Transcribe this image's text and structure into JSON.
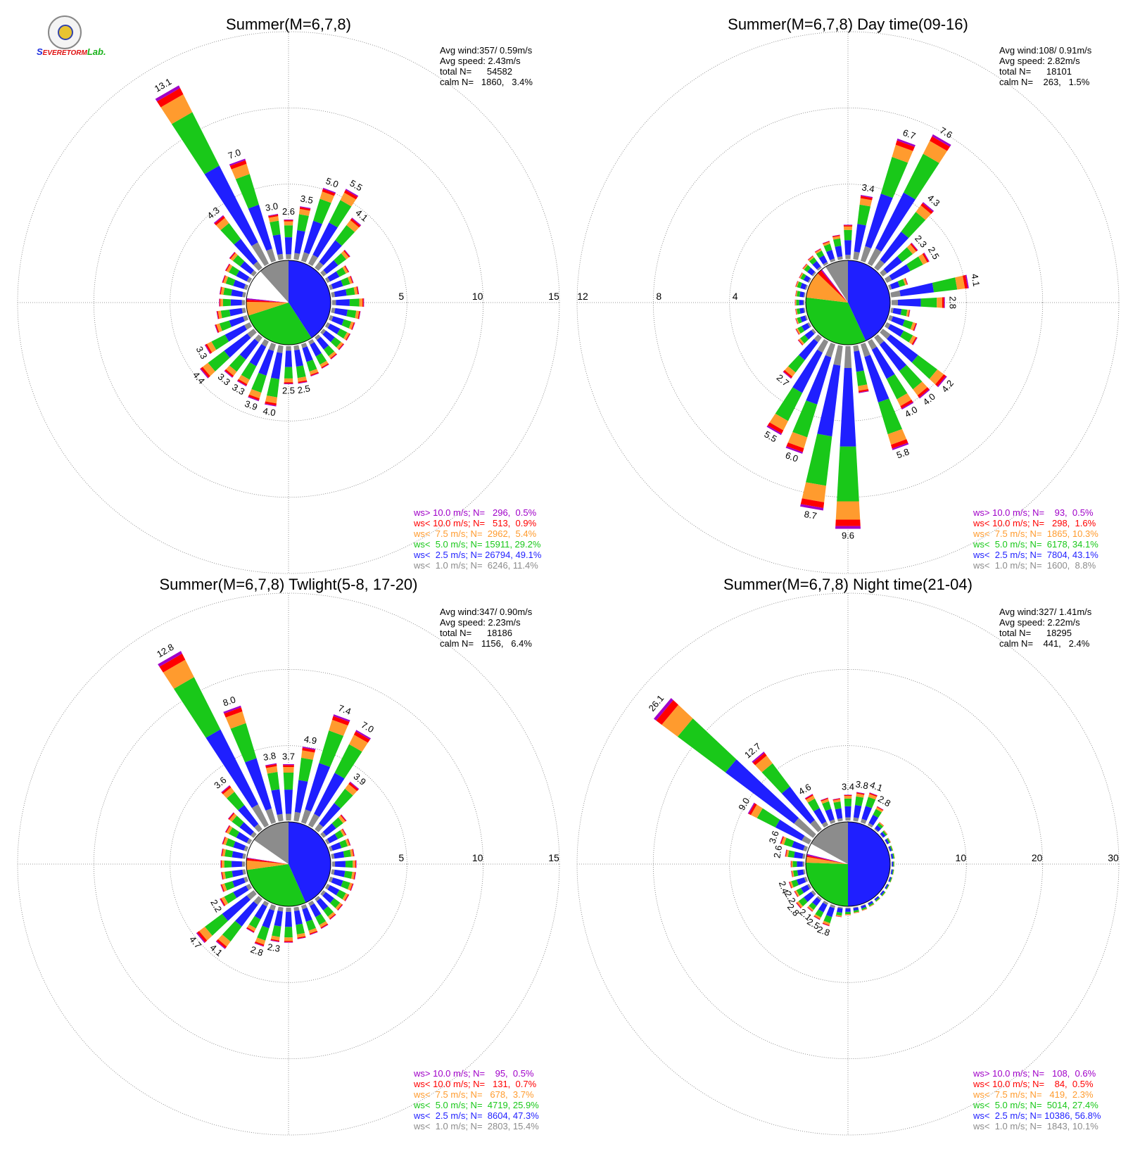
{
  "logo": {
    "s": "S",
    "severe": "EVERE",
    "storm": "TORM",
    "lab": "Lab."
  },
  "colors": {
    "ws_gt_10": "#a000c8",
    "ws_lt_10": "#ff0000",
    "ws_lt_7_5": "#ff9b2e",
    "ws_lt_5": "#19c819",
    "ws_lt_2_5": "#1f1fff",
    "ws_lt_1": "#8c8c8c",
    "grid": "#7a7a7a"
  },
  "chart_data": [
    {
      "type": "windrose",
      "title": "Summer(M=6,7,8)",
      "rlim": [
        0,
        15
      ],
      "ring_labels": [
        "5",
        "10",
        "15"
      ],
      "ring_values": [
        5,
        10,
        15
      ],
      "ring_label_side": "right",
      "stats": [
        "Avg wind:357/ 0.59m/s",
        "Avg speed: 2.43m/s",
        "total N=      54582",
        "calm N=   1860,   3.4%"
      ],
      "legend": [
        {
          "text": "ws> 10.0 m/s; N=   296,  0.5%",
          "color": "#a000c8"
        },
        {
          "text": "ws< 10.0 m/s; N=   513,  0.9%",
          "color": "#ff0000"
        },
        {
          "text": "ws<  7.5 m/s; N=  2962,  5.4%",
          "color": "#ff9b2e"
        },
        {
          "text": "ws<  5.0 m/s; N= 15911, 29.2%",
          "color": "#19c819"
        },
        {
          "text": "ws<  2.5 m/s; N= 26794, 49.1%",
          "color": "#1f1fff"
        },
        {
          "text": "ws<  1.0 m/s; N=  6246, 11.4%",
          "color": "#8c8c8c"
        }
      ],
      "pie": [
        {
          "from": 0,
          "to": 147,
          "color": "#1f1fff"
        },
        {
          "from": 147,
          "to": 252,
          "color": "#19c819"
        },
        {
          "from": 252,
          "to": 271,
          "color": "#ff9b2e"
        },
        {
          "from": 271,
          "to": 274,
          "color": "#ff0000"
        },
        {
          "from": 274,
          "to": 276,
          "color": "#a000c8"
        },
        {
          "from": 276,
          "to": 318,
          "color": "#ffffff"
        },
        {
          "from": 318,
          "to": 360,
          "color": "#8c8c8c"
        }
      ],
      "directions": [
        0,
        10,
        20,
        30,
        40,
        50,
        60,
        70,
        80,
        90,
        100,
        110,
        120,
        130,
        140,
        150,
        160,
        170,
        180,
        190,
        200,
        210,
        220,
        230,
        240,
        250,
        260,
        270,
        280,
        290,
        300,
        310,
        320,
        330,
        340,
        350
      ],
      "totals": [
        2.6,
        3.5,
        5.0,
        5.5,
        4.1,
        2.2,
        1.6,
        1.6,
        1.8,
        2.1,
        1.9,
        1.7,
        1.7,
        1.7,
        1.8,
        2.0,
        2.2,
        2.5,
        2.5,
        4.0,
        3.9,
        3.3,
        3.3,
        4.4,
        3.3,
        2.2,
        1.9,
        1.7,
        1.7,
        1.7,
        1.8,
        2.0,
        4.3,
        13.1,
        7.0,
        3.0
      ],
      "bar_labels": [
        {
          "dir": 0,
          "text": "2.6"
        },
        {
          "dir": 10,
          "text": "3.5"
        },
        {
          "dir": 20,
          "text": "5.0"
        },
        {
          "dir": 30,
          "text": "5.5"
        },
        {
          "dir": 40,
          "text": "4.1"
        },
        {
          "dir": 170,
          "text": "2.5"
        },
        {
          "dir": 180,
          "text": "2.5"
        },
        {
          "dir": 190,
          "text": "4.0"
        },
        {
          "dir": 200,
          "text": "3.9"
        },
        {
          "dir": 210,
          "text": "3.3"
        },
        {
          "dir": 220,
          "text": "3.3"
        },
        {
          "dir": 230,
          "text": "4.4"
        },
        {
          "dir": 240,
          "text": "3.3"
        },
        {
          "dir": 320,
          "text": "4.3"
        },
        {
          "dir": 330,
          "text": "13.1"
        },
        {
          "dir": 340,
          "text": "7.0"
        },
        {
          "dir": 350,
          "text": "3.0"
        }
      ]
    },
    {
      "type": "windrose",
      "title": "Summer(M=6,7,8) Day time(09-16)",
      "rlim": [
        0,
        12
      ],
      "ring_labels": [
        "4",
        "8",
        "12"
      ],
      "ring_values": [
        4,
        8,
        12
      ],
      "ring_label_side": "left",
      "stats": [
        "Avg wind:108/ 0.91m/s",
        "Avg speed: 2.82m/s",
        "total N=      18101",
        "calm N=    263,   1.5%"
      ],
      "legend": [
        {
          "text": "ws> 10.0 m/s; N=    93,  0.5%",
          "color": "#a000c8"
        },
        {
          "text": "ws< 10.0 m/s; N=   298,  1.6%",
          "color": "#ff0000"
        },
        {
          "text": "ws<  7.5 m/s; N=  1865, 10.3%",
          "color": "#ff9b2e"
        },
        {
          "text": "ws<  5.0 m/s; N=  6178, 34.1%",
          "color": "#19c819"
        },
        {
          "text": "ws<  2.5 m/s; N=  7804, 43.1%",
          "color": "#1f1fff"
        },
        {
          "text": "ws<  1.0 m/s; N=  1600,  8.8%",
          "color": "#8c8c8c"
        }
      ],
      "pie": [
        {
          "from": 0,
          "to": 155,
          "color": "#1f1fff"
        },
        {
          "from": 155,
          "to": 277,
          "color": "#19c819"
        },
        {
          "from": 277,
          "to": 314,
          "color": "#ff9b2e"
        },
        {
          "from": 314,
          "to": 320,
          "color": "#ff0000"
        },
        {
          "from": 320,
          "to": 322,
          "color": "#a000c8"
        },
        {
          "from": 322,
          "to": 328,
          "color": "#ffffff"
        },
        {
          "from": 328,
          "to": 360,
          "color": "#8c8c8c"
        }
      ],
      "directions": [
        0,
        10,
        20,
        30,
        40,
        50,
        60,
        70,
        80,
        90,
        100,
        110,
        120,
        130,
        140,
        150,
        160,
        170,
        180,
        190,
        200,
        210,
        220,
        230,
        240,
        250,
        260,
        270,
        280,
        290,
        300,
        310,
        320,
        330,
        340,
        350
      ],
      "totals": [
        1.8,
        3.4,
        6.7,
        7.6,
        4.3,
        2.3,
        2.5,
        1.0,
        4.1,
        2.8,
        1.0,
        1.5,
        1.8,
        4.2,
        4.0,
        4.0,
        5.8,
        2.5,
        9.6,
        8.7,
        6.0,
        5.5,
        2.7,
        1.0,
        0.8,
        0.6,
        0.5,
        0.5,
        0.5,
        0.6,
        0.6,
        0.7,
        0.8,
        0.9,
        1.1,
        1.3
      ],
      "bar_labels": [
        {
          "dir": 10,
          "text": "3.4"
        },
        {
          "dir": 20,
          "text": "6.7"
        },
        {
          "dir": 30,
          "text": "7.6"
        },
        {
          "dir": 40,
          "text": "4.3"
        },
        {
          "dir": 50,
          "text": "2.3"
        },
        {
          "dir": 60,
          "text": "2.5"
        },
        {
          "dir": 80,
          "text": "4.1"
        },
        {
          "dir": 90,
          "text": "2.8"
        },
        {
          "dir": 130,
          "text": "4.2"
        },
        {
          "dir": 140,
          "text": "4.0"
        },
        {
          "dir": 150,
          "text": "4.0"
        },
        {
          "dir": 160,
          "text": "5.8"
        },
        {
          "dir": 180,
          "text": "9.6"
        },
        {
          "dir": 190,
          "text": "8.7"
        },
        {
          "dir": 200,
          "text": "6.0"
        },
        {
          "dir": 210,
          "text": "5.5"
        },
        {
          "dir": 220,
          "text": "2.7"
        }
      ]
    },
    {
      "type": "windrose",
      "title": "Summer(M=6,7,8) Twlight(5-8, 17-20)",
      "rlim": [
        0,
        15
      ],
      "ring_labels": [
        "5",
        "10",
        "15"
      ],
      "ring_values": [
        5,
        10,
        15
      ],
      "ring_label_side": "right",
      "stats": [
        "Avg wind:347/ 0.90m/s",
        "Avg speed: 2.23m/s",
        "total N=      18186",
        "calm N=   1156,   6.4%"
      ],
      "legend": [
        {
          "text": "ws> 10.0 m/s; N=    95,  0.5%",
          "color": "#a000c8"
        },
        {
          "text": "ws< 10.0 m/s; N=   131,  0.7%",
          "color": "#ff0000"
        },
        {
          "text": "ws<  7.5 m/s; N=   678,  3.7%",
          "color": "#ff9b2e"
        },
        {
          "text": "ws<  5.0 m/s; N=  4719, 25.9%",
          "color": "#19c819"
        },
        {
          "text": "ws<  2.5 m/s; N=  8604, 47.3%",
          "color": "#1f1fff"
        },
        {
          "text": "ws<  1.0 m/s; N=  2803, 15.4%",
          "color": "#8c8c8c"
        }
      ],
      "pie": [
        {
          "from": 0,
          "to": 156,
          "color": "#1f1fff"
        },
        {
          "from": 156,
          "to": 262,
          "color": "#19c819"
        },
        {
          "from": 262,
          "to": 275,
          "color": "#ff9b2e"
        },
        {
          "from": 275,
          "to": 278,
          "color": "#ff0000"
        },
        {
          "from": 278,
          "to": 279,
          "color": "#a000c8"
        },
        {
          "from": 279,
          "to": 305,
          "color": "#ffffff"
        },
        {
          "from": 305,
          "to": 360,
          "color": "#8c8c8c"
        }
      ],
      "directions": [
        0,
        10,
        20,
        30,
        40,
        50,
        60,
        70,
        80,
        90,
        100,
        110,
        120,
        130,
        140,
        150,
        160,
        170,
        180,
        190,
        200,
        210,
        220,
        230,
        240,
        250,
        260,
        270,
        280,
        290,
        300,
        310,
        320,
        330,
        340,
        350
      ],
      "totals": [
        3.7,
        4.9,
        7.4,
        7.0,
        3.9,
        1.9,
        1.4,
        1.4,
        1.5,
        1.6,
        1.6,
        1.6,
        1.6,
        1.6,
        1.7,
        1.9,
        2.0,
        2.1,
        2.3,
        2.3,
        2.8,
        2.2,
        4.1,
        4.7,
        2.2,
        1.8,
        1.6,
        1.6,
        1.6,
        1.7,
        1.8,
        2.1,
        3.6,
        12.8,
        8.0,
        3.8
      ],
      "bar_labels": [
        {
          "dir": 0,
          "text": "3.7"
        },
        {
          "dir": 10,
          "text": "4.9"
        },
        {
          "dir": 20,
          "text": "7.4"
        },
        {
          "dir": 30,
          "text": "7.0"
        },
        {
          "dir": 40,
          "text": "3.9"
        },
        {
          "dir": 190,
          "text": "2.3"
        },
        {
          "dir": 200,
          "text": "2.8"
        },
        {
          "dir": 220,
          "text": "4.1"
        },
        {
          "dir": 230,
          "text": "4.7"
        },
        {
          "dir": 240,
          "text": "2.2"
        },
        {
          "dir": 320,
          "text": "3.6"
        },
        {
          "dir": 330,
          "text": "12.8"
        },
        {
          "dir": 340,
          "text": "8.0"
        },
        {
          "dir": 350,
          "text": "3.8"
        }
      ]
    },
    {
      "type": "windrose",
      "title": "Summer(M=6,7,8) Night time(21-04)",
      "rlim": [
        0,
        30
      ],
      "ring_labels": [
        "10",
        "20",
        "30"
      ],
      "ring_values": [
        10,
        20,
        30
      ],
      "ring_label_side": "right",
      "stats": [
        "Avg wind:327/ 1.41m/s",
        "Avg speed: 2.22m/s",
        "total N=      18295",
        "calm N=    441,   2.4%"
      ],
      "legend": [
        {
          "text": "ws> 10.0 m/s; N=   108,  0.6%",
          "color": "#a000c8"
        },
        {
          "text": "ws< 10.0 m/s; N=    84,  0.5%",
          "color": "#ff0000"
        },
        {
          "text": "ws<  7.5 m/s; N=   419,  2.3%",
          "color": "#ff9b2e"
        },
        {
          "text": "ws<  5.0 m/s; N=  5014, 27.4%",
          "color": "#19c819"
        },
        {
          "text": "ws<  2.5 m/s; N= 10386, 56.8%",
          "color": "#1f1fff"
        },
        {
          "text": "ws<  1.0 m/s; N=  1843, 10.1%",
          "color": "#8c8c8c"
        }
      ],
      "pie": [
        {
          "from": 0,
          "to": 180,
          "color": "#1f1fff"
        },
        {
          "from": 180,
          "to": 272,
          "color": "#19c819"
        },
        {
          "from": 272,
          "to": 280,
          "color": "#ff9b2e"
        },
        {
          "from": 280,
          "to": 282,
          "color": "#ff0000"
        },
        {
          "from": 282,
          "to": 284,
          "color": "#a000c8"
        },
        {
          "from": 284,
          "to": 299,
          "color": "#ffffff"
        },
        {
          "from": 299,
          "to": 360,
          "color": "#8c8c8c"
        }
      ],
      "directions": [
        0,
        10,
        20,
        30,
        40,
        50,
        60,
        70,
        80,
        90,
        100,
        110,
        120,
        130,
        140,
        150,
        160,
        170,
        180,
        190,
        200,
        210,
        220,
        230,
        240,
        250,
        260,
        270,
        280,
        290,
        300,
        310,
        320,
        330,
        340,
        350
      ],
      "totals": [
        3.4,
        3.8,
        4.1,
        2.8,
        1.2,
        0.8,
        0.6,
        0.5,
        0.5,
        0.4,
        0.4,
        0.4,
        0.4,
        0.5,
        0.5,
        0.6,
        0.7,
        0.8,
        1.0,
        1.3,
        2.8,
        2.5,
        2.1,
        2.8,
        2.2,
        2.4,
        1.8,
        1.8,
        2.6,
        3.6,
        9.0,
        26.1,
        12.7,
        4.6,
        3.4,
        3.0
      ],
      "bar_labels": [
        {
          "dir": 0,
          "text": "3.4"
        },
        {
          "dir": 10,
          "text": "3.8"
        },
        {
          "dir": 20,
          "text": "4.1"
        },
        {
          "dir": 30,
          "text": "2.8"
        },
        {
          "dir": 200,
          "text": "2.8"
        },
        {
          "dir": 210,
          "text": "2.5"
        },
        {
          "dir": 220,
          "text": "2.1"
        },
        {
          "dir": 230,
          "text": "2.8"
        },
        {
          "dir": 240,
          "text": "2.2"
        },
        {
          "dir": 250,
          "text": "2.4"
        },
        {
          "dir": 280,
          "text": "2.6"
        },
        {
          "dir": 290,
          "text": "3.6"
        },
        {
          "dir": 300,
          "text": "9.0"
        },
        {
          "dir": 310,
          "text": "26.1"
        },
        {
          "dir": 320,
          "text": "12.7"
        },
        {
          "dir": 330,
          "text": "4.6"
        }
      ]
    }
  ]
}
